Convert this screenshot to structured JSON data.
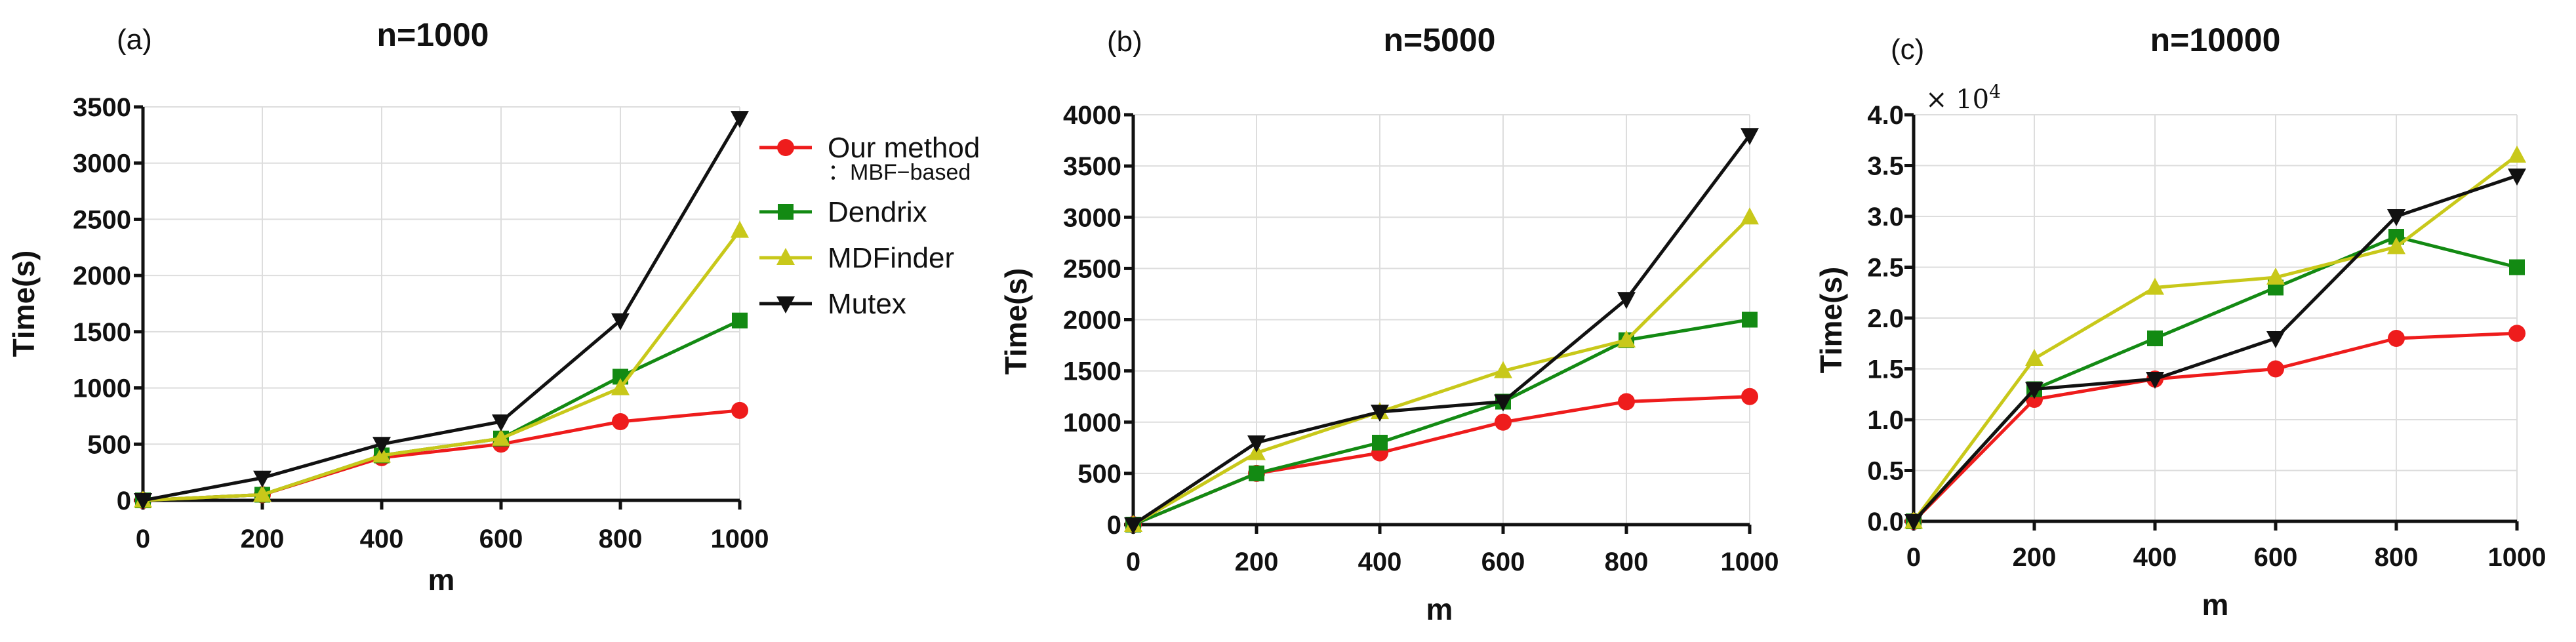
{
  "colors": {
    "our_method": "#ee1c1c",
    "dendrix": "#138a13",
    "mdfinder": "#c8c81a",
    "mutex": "#111111",
    "grid": "#dddddd",
    "axis": "#111111"
  },
  "legend": {
    "items": [
      {
        "line1": "Our method",
        "line2": "：MBF−based",
        "series_key": "our_method",
        "marker": "circle"
      },
      {
        "line1": "Dendrix",
        "line2": "",
        "series_key": "dendrix",
        "marker": "square"
      },
      {
        "line1": "MDFinder",
        "line2": "",
        "series_key": "mdfinder",
        "marker": "triangle-up"
      },
      {
        "line1": "Mutex",
        "line2": "",
        "series_key": "mutex",
        "marker": "triangle-down"
      }
    ]
  },
  "chart_data": [
    {
      "type": "line",
      "panel_label": "(a)",
      "title": "n=1000",
      "xlabel": "m",
      "ylabel": "Time(s)",
      "scale_label": "",
      "x": [
        0,
        200,
        400,
        600,
        800,
        1000
      ],
      "xlim": [
        0,
        1000
      ],
      "ylim": [
        0,
        3500
      ],
      "yticks": [
        0,
        500,
        1000,
        1500,
        2000,
        2500,
        3000,
        3500
      ],
      "ytick_labels": [
        "0",
        "500",
        "1000",
        "1500",
        "2000",
        "2500",
        "3000",
        "3500"
      ],
      "grid": true,
      "series": [
        {
          "name": "Our method :MBF-based",
          "key": "our_method",
          "values": [
            0,
            50,
            380,
            500,
            700,
            800
          ]
        },
        {
          "name": "Dendrix",
          "key": "dendrix",
          "values": [
            0,
            50,
            400,
            550,
            1100,
            1600
          ]
        },
        {
          "name": "MDFinder",
          "key": "mdfinder",
          "values": [
            0,
            50,
            400,
            550,
            1000,
            2400
          ]
        },
        {
          "name": "Mutex",
          "key": "mutex",
          "values": [
            0,
            200,
            500,
            700,
            1600,
            3400
          ]
        }
      ]
    },
    {
      "type": "line",
      "panel_label": "(b)",
      "title": "n=5000",
      "xlabel": "m",
      "ylabel": "Time(s)",
      "scale_label": "",
      "x": [
        0,
        200,
        400,
        600,
        800,
        1000
      ],
      "xlim": [
        0,
        1000
      ],
      "ylim": [
        0,
        4000
      ],
      "yticks": [
        0,
        500,
        1000,
        1500,
        2000,
        2500,
        3000,
        3500,
        4000
      ],
      "ytick_labels": [
        "0",
        "500",
        "1000",
        "1500",
        "2000",
        "2500",
        "3000",
        "3500",
        "4000"
      ],
      "grid": true,
      "series": [
        {
          "name": "Our method :MBF-based",
          "key": "our_method",
          "values": [
            0,
            500,
            700,
            1000,
            1200,
            1250
          ]
        },
        {
          "name": "Dendrix",
          "key": "dendrix",
          "values": [
            0,
            500,
            800,
            1200,
            1800,
            2000
          ]
        },
        {
          "name": "MDFinder",
          "key": "mdfinder",
          "values": [
            0,
            700,
            1100,
            1500,
            1800,
            3000
          ]
        },
        {
          "name": "Mutex",
          "key": "mutex",
          "values": [
            0,
            800,
            1100,
            1200,
            2200,
            3800
          ]
        }
      ]
    },
    {
      "type": "line",
      "panel_label": "(c)",
      "title": "n=10000",
      "xlabel": "m",
      "ylabel": "Time(s)",
      "scale_label": "× 10",
      "scale_exp": "4",
      "x": [
        0,
        200,
        400,
        600,
        800,
        1000
      ],
      "xlim": [
        0,
        1000
      ],
      "ylim": [
        0,
        40000
      ],
      "yticks": [
        0,
        5000,
        10000,
        15000,
        20000,
        25000,
        30000,
        35000,
        40000
      ],
      "ytick_labels": [
        "0.0",
        "0.5",
        "1.0",
        "1.5",
        "2.0",
        "2.5",
        "3.0",
        "3.5",
        "4.0"
      ],
      "grid": true,
      "series": [
        {
          "name": "Our method :MBF-based",
          "key": "our_method",
          "values": [
            0,
            12000,
            14000,
            15000,
            18000,
            18500
          ]
        },
        {
          "name": "Dendrix",
          "key": "dendrix",
          "values": [
            0,
            13000,
            18000,
            23000,
            28000,
            25000
          ]
        },
        {
          "name": "MDFinder",
          "key": "mdfinder",
          "values": [
            0,
            16000,
            23000,
            24000,
            27000,
            36000
          ]
        },
        {
          "name": "Mutex",
          "key": "mutex",
          "values": [
            0,
            13000,
            14000,
            18000,
            30000,
            34000
          ]
        }
      ]
    }
  ]
}
